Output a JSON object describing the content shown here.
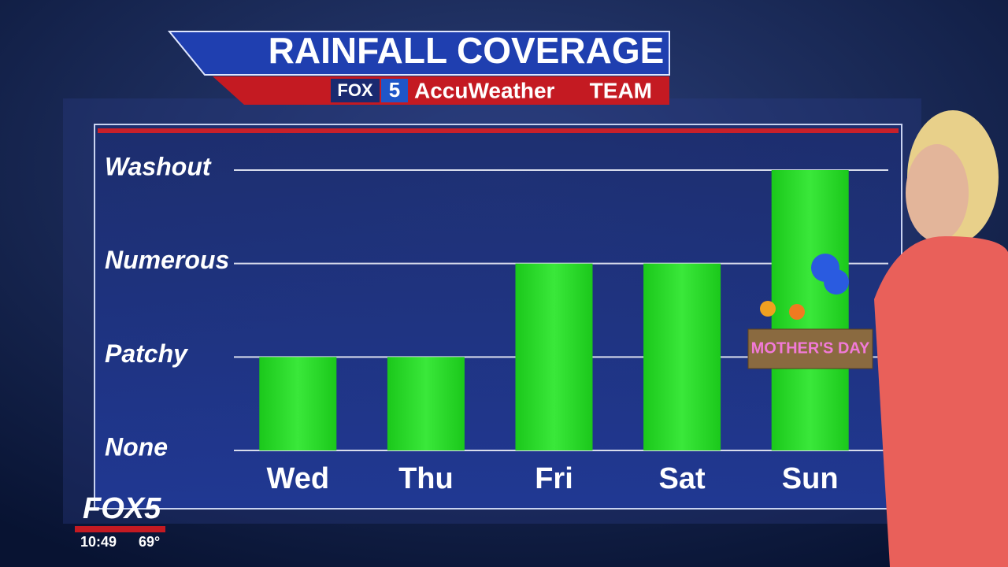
{
  "chart_data": {
    "type": "bar",
    "title": "RAINFALL COVERAGE",
    "categories": [
      "Wed",
      "Thu",
      "Fri",
      "Sat",
      "Sun"
    ],
    "values": [
      1,
      1,
      2,
      2,
      3
    ],
    "color": "#22d422",
    "ylim": [
      0,
      3
    ],
    "yticks": [
      {
        "value": 0,
        "label": "None"
      },
      {
        "value": 1,
        "label": "Patchy"
      },
      {
        "value": 2,
        "label": "Numerous"
      },
      {
        "value": 3,
        "label": "Washout"
      }
    ],
    "grid": true
  },
  "branding": {
    "network": "FOX",
    "channel": "5",
    "team_brand": "AccuWeather",
    "team": "TEAM",
    "logo": "FOX5",
    "time": "10:49",
    "temperature": "69°",
    "badge": "MOTHER'S DAY"
  }
}
